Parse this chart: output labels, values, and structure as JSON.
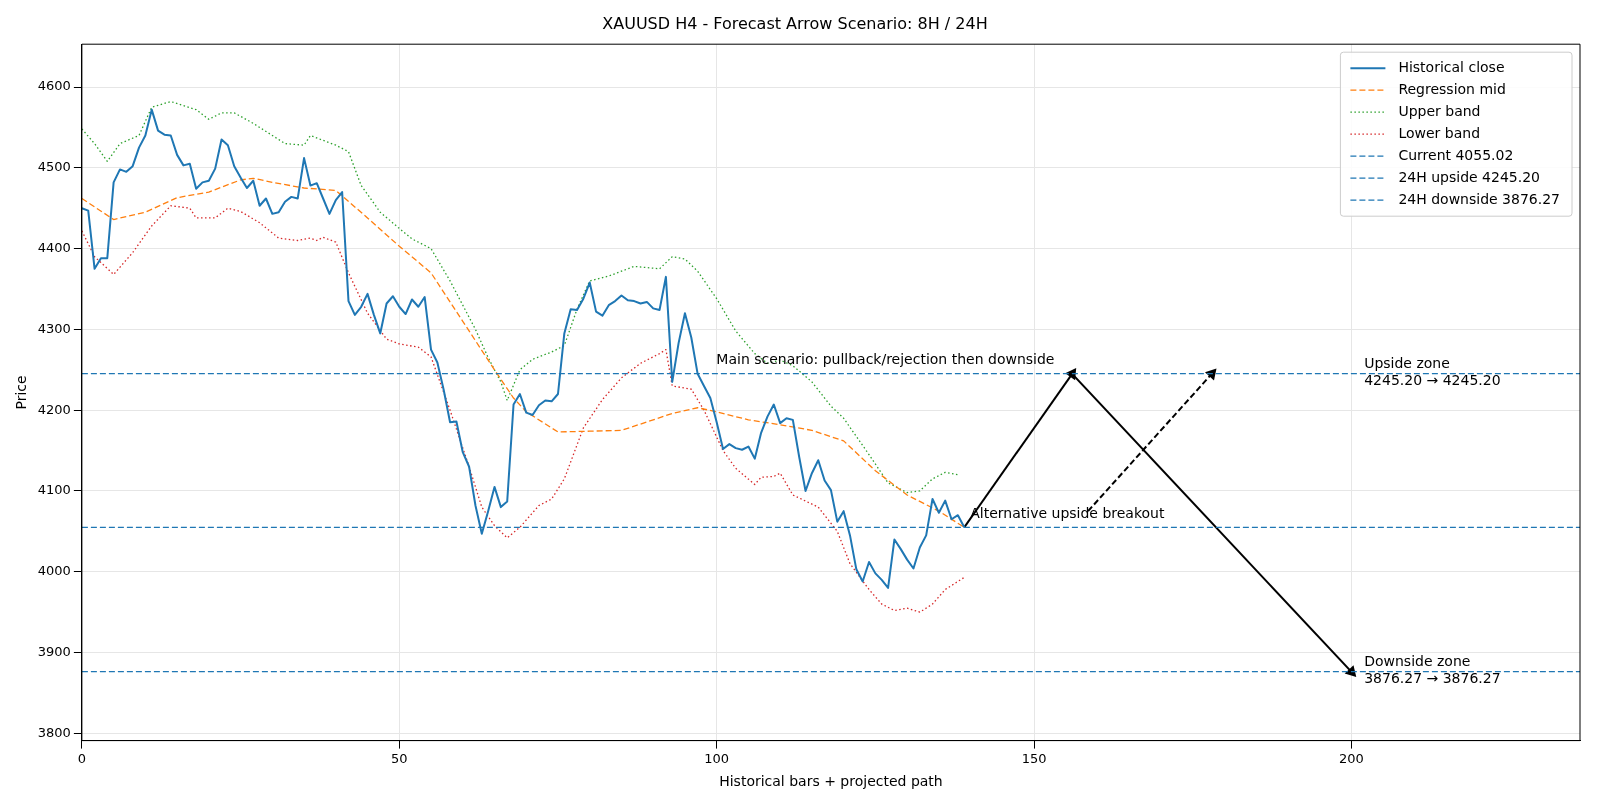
{
  "chart_data": {
    "type": "line",
    "title": "XAUUSD H4 - Forecast Arrow Scenario: 8H / 24H",
    "xlabel": "Historical bars + projected path",
    "ylabel": "Price",
    "xlim": [
      0,
      236
    ],
    "xticks": [
      0,
      50,
      100,
      150,
      200
    ],
    "ylim": [
      3791,
      4653
    ],
    "yticks": [
      3800,
      3900,
      4000,
      4100,
      4200,
      4300,
      4400,
      4500,
      4600
    ],
    "grid": true,
    "legend": "top right",
    "marker": "none",
    "series": [
      {
        "name": "Historical close",
        "color": "#1f77b4",
        "line_style": "solid",
        "x": [
          0,
          1,
          2,
          3,
          4,
          5,
          6,
          7,
          8,
          9,
          10,
          11,
          12,
          13,
          14,
          15,
          16,
          17,
          18,
          19,
          20,
          21,
          22,
          23,
          24,
          25,
          26,
          27,
          28,
          29,
          30,
          31,
          32,
          33,
          34,
          35,
          36,
          37,
          38,
          39,
          40,
          41,
          42,
          43,
          44,
          45,
          46,
          47,
          48,
          49,
          50,
          51,
          52,
          53,
          54,
          55,
          56,
          57,
          58,
          59,
          60,
          61,
          62,
          63,
          64,
          65,
          66,
          67,
          68,
          69,
          70,
          71,
          72,
          73,
          74,
          75,
          76,
          77,
          78,
          79,
          80,
          81,
          82,
          83,
          84,
          85,
          86,
          87,
          88,
          89,
          90,
          91,
          92,
          93,
          94,
          95,
          96,
          97,
          98,
          99,
          100,
          101,
          102,
          103,
          104,
          105,
          106,
          107,
          108,
          109,
          110,
          111,
          112,
          113,
          114,
          115,
          116,
          117,
          118,
          119,
          120,
          121,
          122,
          123,
          124,
          125,
          126,
          127,
          128,
          129,
          130,
          131,
          132,
          133,
          134,
          135,
          136,
          137,
          138,
          139
        ],
        "values": [
          4450,
          4447,
          4375,
          4388,
          4388,
          4482,
          4498,
          4495,
          4502,
          4525,
          4540,
          4572,
          4546,
          4541,
          4540,
          4516,
          4503,
          4505,
          4474,
          4482,
          4484,
          4499,
          4535,
          4528,
          4502,
          4488,
          4475,
          4484,
          4453,
          4462,
          4443,
          4445,
          4458,
          4464,
          4462,
          4512,
          4478,
          4481,
          4462,
          4443,
          4460,
          4470,
          4335,
          4318,
          4328,
          4344,
          4318,
          4295,
          4332,
          4341,
          4328,
          4319,
          4337,
          4328,
          4340,
          4275,
          4259,
          4225,
          4185,
          4186,
          4148,
          4130,
          4082,
          4047,
          4075,
          4105,
          4080,
          4087,
          4207,
          4220,
          4197,
          4194,
          4206,
          4212,
          4211,
          4220,
          4295,
          4325,
          4324,
          4338,
          4358,
          4322,
          4317,
          4330,
          4335,
          4342,
          4336,
          4335,
          4332,
          4334,
          4326,
          4324,
          4365,
          4235,
          4283,
          4320,
          4290,
          4245,
          4230,
          4215,
          4185,
          4152,
          4158,
          4153,
          4151,
          4155,
          4140,
          4172,
          4192,
          4207,
          4184,
          4190,
          4188,
          4142,
          4100,
          4122,
          4138,
          4113,
          4101,
          4062,
          4075,
          4045,
          4003,
          3988,
          4012,
          3998,
          3990,
          3980,
          4040,
          4028,
          4015,
          4004,
          4030,
          4045,
          4090,
          4073,
          4088,
          4065,
          4070,
          4055
        ]
      },
      {
        "name": "Regression mid",
        "color": "#ff7f0e",
        "line_style": "dashed",
        "x": [
          0,
          5,
          10,
          15,
          20,
          25,
          27,
          30,
          35,
          40,
          45,
          50,
          55,
          60,
          65,
          68,
          70,
          75,
          80,
          85,
          90,
          93,
          97,
          100,
          105,
          110,
          115,
          120,
          125,
          130,
          135,
          139
        ],
        "values": [
          4462,
          4436,
          4445,
          4463,
          4470,
          4485,
          4487,
          4482,
          4475,
          4472,
          4438,
          4403,
          4370,
          4310,
          4250,
          4215,
          4198,
          4173,
          4174,
          4175,
          4188,
          4196,
          4203,
          4198,
          4188,
          4182,
          4175,
          4162,
          4125,
          4095,
          4075,
          4055
        ]
      },
      {
        "name": "Upper band",
        "color": "#2ca02c",
        "line_style": "dotted",
        "x": [
          0,
          2,
          4,
          6,
          9,
          11,
          14,
          18,
          20,
          22,
          24,
          27,
          30,
          32,
          35,
          36,
          40,
          42,
          44,
          47,
          50,
          52,
          55,
          58,
          62,
          64,
          66,
          67,
          69,
          71,
          74,
          76,
          78,
          80,
          83,
          87,
          91,
          93,
          95,
          97,
          100,
          103,
          106,
          108,
          110,
          112,
          115,
          118,
          120,
          124,
          127,
          130,
          132,
          134,
          136,
          138
        ],
        "values": [
          4548,
          4530,
          4508,
          4530,
          4540,
          4575,
          4582,
          4572,
          4560,
          4568,
          4568,
          4555,
          4540,
          4530,
          4528,
          4540,
          4528,
          4520,
          4478,
          4445,
          4425,
          4412,
          4400,
          4360,
          4300,
          4265,
          4235,
          4212,
          4250,
          4263,
          4272,
          4280,
          4325,
          4360,
          4366,
          4378,
          4375,
          4390,
          4387,
          4372,
          4338,
          4298,
          4270,
          4258,
          4262,
          4255,
          4235,
          4205,
          4190,
          4145,
          4110,
          4098,
          4100,
          4115,
          4123,
          4120
        ]
      },
      {
        "name": "Lower band",
        "color": "#d62728",
        "line_style": "dotted",
        "x": [
          0,
          2,
          5,
          8,
          11,
          14,
          17,
          18,
          21,
          23,
          25,
          28,
          31,
          34,
          36,
          37,
          38,
          40,
          42,
          45,
          48,
          50,
          53,
          55,
          58,
          61,
          63,
          65,
          67,
          69,
          72,
          74,
          76,
          79,
          82,
          85,
          88,
          91,
          92,
          93,
          96,
          98,
          101,
          103,
          106,
          107,
          109,
          110,
          112,
          116,
          119,
          121,
          124,
          126,
          128,
          130,
          132,
          134,
          136,
          139
        ],
        "values": [
          4422,
          4390,
          4368,
          4395,
          4428,
          4453,
          4450,
          4438,
          4438,
          4450,
          4446,
          4432,
          4413,
          4410,
          4413,
          4410,
          4414,
          4408,
          4370,
          4320,
          4288,
          4282,
          4278,
          4266,
          4200,
          4130,
          4080,
          4057,
          4042,
          4055,
          4082,
          4090,
          4115,
          4178,
          4213,
          4240,
          4258,
          4270,
          4275,
          4230,
          4226,
          4200,
          4150,
          4128,
          4108,
          4117,
          4118,
          4122,
          4095,
          4080,
          4050,
          4010,
          3978,
          3960,
          3952,
          3955,
          3950,
          3960,
          3978,
          3993
        ]
      },
      {
        "color": "#000000",
        "line_style": "solid",
        "marker": "triangle",
        "x": [
          139,
          156
        ],
        "values": [
          4055,
          4245
        ]
      },
      {
        "color": "#000000",
        "line_style": "solid",
        "marker": "triangle",
        "x": [
          156,
          200
        ],
        "values": [
          4245,
          3876
        ]
      },
      {
        "color": "#000000",
        "line_style": "dashed",
        "marker": "triangle",
        "x": [
          158.5,
          178
        ],
        "values": [
          4075,
          4245
        ]
      }
    ],
    "ref_lines": [
      {
        "axis": "y",
        "value": 4055.02,
        "label": "Current 4055.02",
        "color": "#1f77b4",
        "line_style": "dashed"
      },
      {
        "axis": "y",
        "value": 4245.2,
        "label": "24H upside 4245.20",
        "color": "#1f77b4",
        "line_style": "dashed"
      },
      {
        "axis": "y",
        "value": 3876.27,
        "label": "24H downside 3876.27",
        "color": "#1f77b4",
        "line_style": "dashed"
      }
    ],
    "annotations": [
      {
        "text": "Main scenario: pullback/rejection then downside",
        "x": 99,
        "y": 4245.2
      },
      {
        "text": "Alternative upside breakout",
        "x": 139,
        "y": 4055.02
      },
      {
        "text": "Upside zone\n4245.20 → 4245.20",
        "x": 202,
        "y": 4245.2
      },
      {
        "text": "Downside zone\n3876.27 → 3876.27",
        "x": 202,
        "y": 3876.27
      }
    ]
  }
}
